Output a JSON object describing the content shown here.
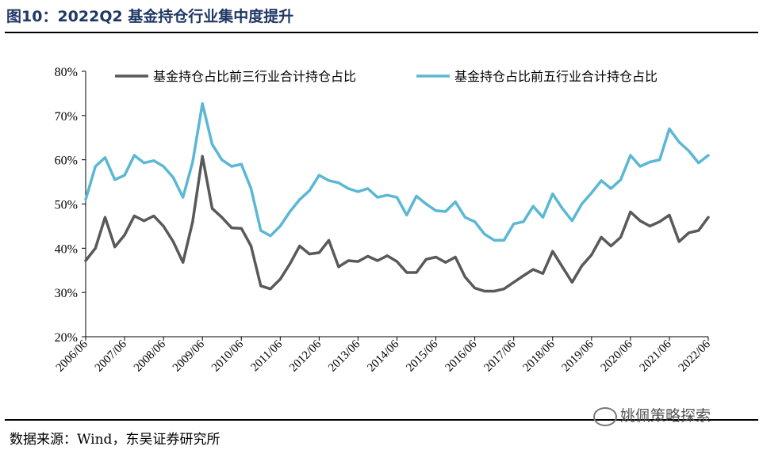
{
  "title": "图10：2022Q2 基金持仓行业集中度提升",
  "source": "数据来源：Wind，东吴证券研究所",
  "watermark": "姚佩策略探索",
  "chart_data": {
    "type": "line",
    "y_ticks": [
      "20%",
      "30%",
      "40%",
      "50%",
      "60%",
      "70%",
      "80%"
    ],
    "ylim": [
      20,
      80
    ],
    "legend_position": "top",
    "categories": [
      "2006/06",
      "2006/09",
      "2006/12",
      "2007/03",
      "2007/06",
      "2007/09",
      "2007/12",
      "2008/03",
      "2008/06",
      "2008/09",
      "2008/12",
      "2009/03",
      "2009/06",
      "2009/09",
      "2009/12",
      "2010/03",
      "2010/06",
      "2010/09",
      "2010/12",
      "2011/03",
      "2011/06",
      "2011/09",
      "2011/12",
      "2012/03",
      "2012/06",
      "2012/09",
      "2012/12",
      "2013/03",
      "2013/06",
      "2013/09",
      "2013/12",
      "2014/03",
      "2014/06",
      "2014/09",
      "2014/12",
      "2015/03",
      "2015/06",
      "2015/09",
      "2015/12",
      "2016/03",
      "2016/06",
      "2016/09",
      "2016/12",
      "2017/03",
      "2017/06",
      "2017/09",
      "2017/12",
      "2018/03",
      "2018/06",
      "2018/09",
      "2018/12",
      "2019/03",
      "2019/06",
      "2019/09",
      "2019/12",
      "2020/03",
      "2020/06",
      "2020/09",
      "2020/12",
      "2021/03",
      "2021/06",
      "2021/09",
      "2021/12",
      "2022/03",
      "2022/06"
    ],
    "x_tick_labels": [
      "2006/06",
      "2007/06",
      "2008/06",
      "2009/06",
      "2010/06",
      "2011/06",
      "2012/06",
      "2013/06",
      "2014/06",
      "2015/06",
      "2016/06",
      "2017/06",
      "2018/06",
      "2019/06",
      "2020/06",
      "2021/06",
      "2022/06"
    ],
    "series": [
      {
        "name": "基金持仓占比前三行业合计持仓占比",
        "color": "#595959",
        "values": [
          37.2,
          40.0,
          47.0,
          40.3,
          43.0,
          47.3,
          46.2,
          47.3,
          45.0,
          41.5,
          36.8,
          46.0,
          60.8,
          49.0,
          47.0,
          44.6,
          44.5,
          40.5,
          31.5,
          30.8,
          33.0,
          36.5,
          40.5,
          38.7,
          39.0,
          41.8,
          35.8,
          37.2,
          37.0,
          38.2,
          37.2,
          38.3,
          37.0,
          34.5,
          34.5,
          37.5,
          38.0,
          36.8,
          38.0,
          33.5,
          31.0,
          30.3,
          30.3,
          30.8,
          32.3,
          33.8,
          35.2,
          34.3,
          39.3,
          35.8,
          32.3,
          36.0,
          38.5,
          42.5,
          40.5,
          42.5,
          48.2,
          46.2,
          45.0,
          46.0,
          47.5,
          41.5,
          43.5,
          44.0,
          47.0
        ]
      },
      {
        "name": "基金持仓占比前五行业合计持仓占比",
        "color": "#5bb8d4",
        "values": [
          51.0,
          58.5,
          60.5,
          55.5,
          56.5,
          61.0,
          59.3,
          59.8,
          58.5,
          56.0,
          51.5,
          59.5,
          72.7,
          63.5,
          60.0,
          58.5,
          59.0,
          53.5,
          44.0,
          42.8,
          45.0,
          48.3,
          51.0,
          53.0,
          56.5,
          55.3,
          54.8,
          53.5,
          52.8,
          53.5,
          51.5,
          52.0,
          51.5,
          47.5,
          51.8,
          50.0,
          48.5,
          48.3,
          50.5,
          47.0,
          46.0,
          43.2,
          41.8,
          41.8,
          45.5,
          46.0,
          49.5,
          47.0,
          52.3,
          49.0,
          46.2,
          50.0,
          52.5,
          55.3,
          53.5,
          55.5,
          61.0,
          58.5,
          59.5,
          60.0,
          67.0,
          64.0,
          62.0,
          59.3,
          61.0
        ]
      }
    ]
  }
}
